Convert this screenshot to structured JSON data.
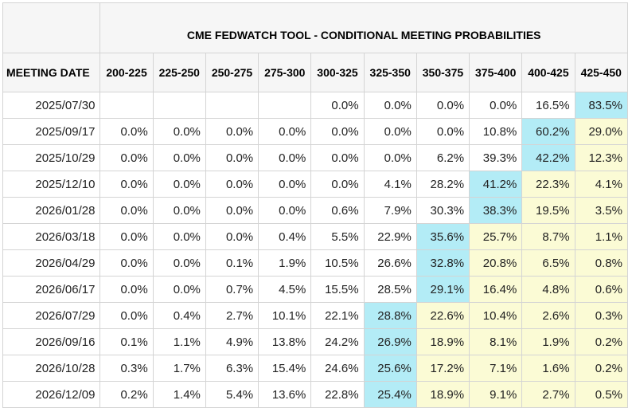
{
  "title": "CME FEDWATCH TOOL - CONDITIONAL MEETING PROBABILITIES",
  "date_header": "MEETING DATE",
  "ranges": [
    "200-225",
    "225-250",
    "250-275",
    "275-300",
    "300-325",
    "325-350",
    "350-375",
    "375-400",
    "400-425",
    "425-450"
  ],
  "colors": {
    "highlight_max": "#b3ecf6",
    "highlight_above_max": "#fbfbd5",
    "header_bg": "#f6f6f6",
    "border": "#d4d4d4"
  },
  "rows": [
    {
      "date": "2025/07/30",
      "values": [
        "",
        "",
        "",
        "",
        "0.0%",
        "0.0%",
        "0.0%",
        "0.0%",
        "16.5%",
        "83.5%"
      ],
      "max_col": 9
    },
    {
      "date": "2025/09/17",
      "values": [
        "0.0%",
        "0.0%",
        "0.0%",
        "0.0%",
        "0.0%",
        "0.0%",
        "0.0%",
        "10.8%",
        "60.2%",
        "29.0%"
      ],
      "max_col": 8
    },
    {
      "date": "2025/10/29",
      "values": [
        "0.0%",
        "0.0%",
        "0.0%",
        "0.0%",
        "0.0%",
        "0.0%",
        "6.2%",
        "39.3%",
        "42.2%",
        "12.3%"
      ],
      "max_col": 8
    },
    {
      "date": "2025/12/10",
      "values": [
        "0.0%",
        "0.0%",
        "0.0%",
        "0.0%",
        "0.0%",
        "4.1%",
        "28.2%",
        "41.2%",
        "22.3%",
        "4.1%"
      ],
      "max_col": 7
    },
    {
      "date": "2026/01/28",
      "values": [
        "0.0%",
        "0.0%",
        "0.0%",
        "0.0%",
        "0.6%",
        "7.9%",
        "30.3%",
        "38.3%",
        "19.5%",
        "3.5%"
      ],
      "max_col": 7
    },
    {
      "date": "2026/03/18",
      "values": [
        "0.0%",
        "0.0%",
        "0.0%",
        "0.4%",
        "5.5%",
        "22.9%",
        "35.6%",
        "25.7%",
        "8.7%",
        "1.1%"
      ],
      "max_col": 6
    },
    {
      "date": "2026/04/29",
      "values": [
        "0.0%",
        "0.0%",
        "0.1%",
        "1.9%",
        "10.5%",
        "26.6%",
        "32.8%",
        "20.8%",
        "6.5%",
        "0.8%"
      ],
      "max_col": 6
    },
    {
      "date": "2026/06/17",
      "values": [
        "0.0%",
        "0.0%",
        "0.7%",
        "4.5%",
        "15.5%",
        "28.5%",
        "29.1%",
        "16.4%",
        "4.8%",
        "0.6%"
      ],
      "max_col": 6
    },
    {
      "date": "2026/07/29",
      "values": [
        "0.0%",
        "0.4%",
        "2.7%",
        "10.1%",
        "22.1%",
        "28.8%",
        "22.6%",
        "10.4%",
        "2.6%",
        "0.3%"
      ],
      "max_col": 5
    },
    {
      "date": "2026/09/16",
      "values": [
        "0.1%",
        "1.1%",
        "4.9%",
        "13.8%",
        "24.2%",
        "26.9%",
        "18.9%",
        "8.1%",
        "1.9%",
        "0.2%"
      ],
      "max_col": 5
    },
    {
      "date": "2026/10/28",
      "values": [
        "0.3%",
        "1.7%",
        "6.3%",
        "15.4%",
        "24.6%",
        "25.6%",
        "17.2%",
        "7.1%",
        "1.6%",
        "0.2%"
      ],
      "max_col": 5
    },
    {
      "date": "2026/12/09",
      "values": [
        "0.2%",
        "1.4%",
        "5.4%",
        "13.6%",
        "22.8%",
        "25.4%",
        "18.9%",
        "9.1%",
        "2.7%",
        "0.5%"
      ],
      "max_col": 5
    }
  ]
}
